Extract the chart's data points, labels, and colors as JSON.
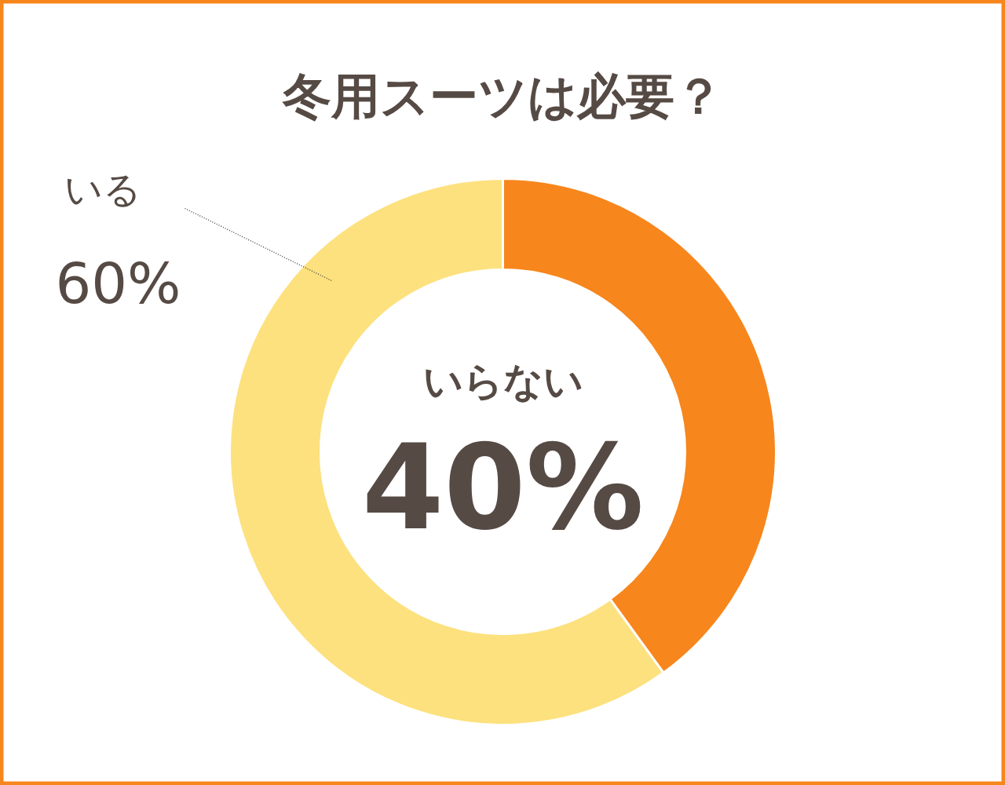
{
  "chart_data": {
    "type": "donut",
    "title": "冬用スーツは必要？",
    "categories": [
      "いらない",
      "いる"
    ],
    "values": [
      40,
      60
    ],
    "colors": [
      "#f7861c",
      "#fde17e"
    ],
    "value_labels": [
      "40%",
      "60%"
    ]
  }
}
